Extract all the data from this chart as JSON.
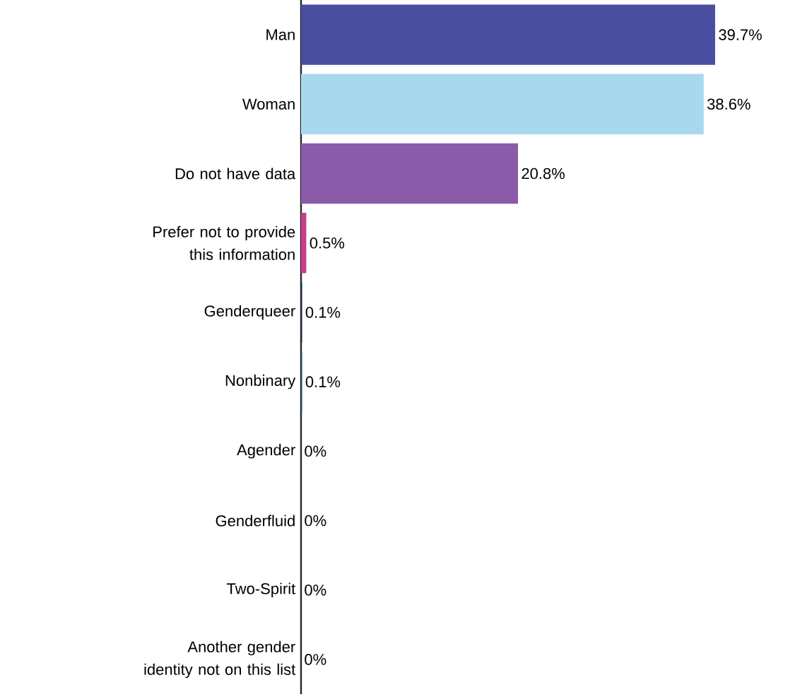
{
  "chart_data": {
    "type": "bar",
    "orientation": "horizontal",
    "categories": [
      "Man",
      "Woman",
      "Do not have data",
      "Prefer not to provide this information",
      "Genderqueer",
      "Nonbinary",
      "Agender",
      "Genderfluid",
      "Two-Spirit",
      "Another gender identity not on this list"
    ],
    "values": [
      39.7,
      38.6,
      20.8,
      0.5,
      0.1,
      0.1,
      0,
      0,
      0,
      0
    ],
    "value_labels": [
      "39.7%",
      "38.6%",
      "20.8%",
      "0.5%",
      "0.1%",
      "0.1%",
      "0%",
      "0%",
      "0%",
      "0%"
    ],
    "colors": [
      "#4a4ea0",
      "#a8d8ee",
      "#8a5ba8",
      "#c83c8c",
      "#1f2a5a",
      "#1b5e7a",
      "#1f2a5a",
      "#1f2a5a",
      "#1f2a5a",
      "#1f2a5a"
    ],
    "tick_labels": "y"
  }
}
